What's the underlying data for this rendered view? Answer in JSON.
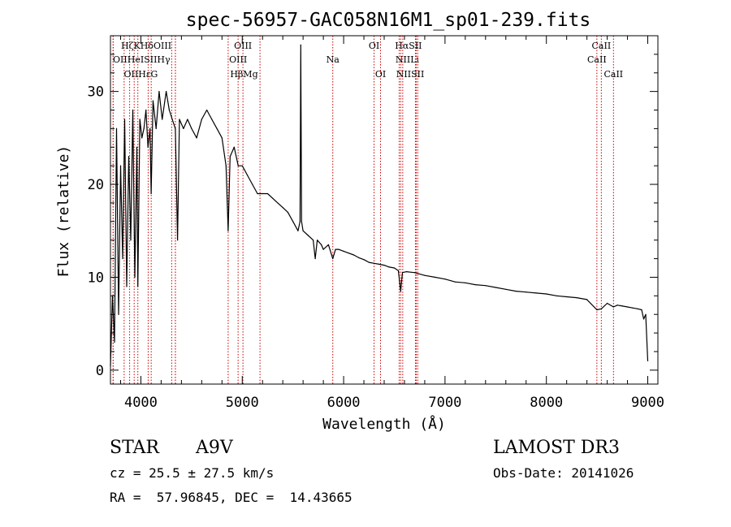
{
  "chart_data": {
    "type": "line",
    "title": "spec-56957-GAC058N16M1_sp01-239.fits",
    "xlabel": "Wavelength (Å)",
    "ylabel": "Flux (relative)",
    "xlim": [
      3700,
      9100
    ],
    "ylim": [
      -1.5,
      36
    ],
    "x_ticks": [
      4000,
      5000,
      6000,
      7000,
      8000,
      9000
    ],
    "y_ticks": [
      0,
      10,
      20,
      30
    ],
    "grid": false,
    "series": [
      {
        "name": "flux",
        "color": "#000000",
        "x": [
          3700,
          3720,
          3740,
          3760,
          3780,
          3800,
          3820,
          3840,
          3860,
          3880,
          3900,
          3920,
          3940,
          3960,
          3970,
          3990,
          4010,
          4030,
          4050,
          4070,
          4090,
          4101,
          4120,
          4150,
          4180,
          4210,
          4250,
          4280,
          4310,
          4340,
          4362,
          4380,
          4420,
          4460,
          4500,
          4550,
          4600,
          4650,
          4700,
          4750,
          4800,
          4840,
          4861,
          4880,
          4920,
          4960,
          5000,
          5050,
          5100,
          5150,
          5200,
          5250,
          5300,
          5350,
          5400,
          5450,
          5500,
          5550,
          5570,
          5577,
          5585,
          5600,
          5650,
          5700,
          5720,
          5740,
          5780,
          5800,
          5850,
          5893,
          5920,
          5950,
          6000,
          6050,
          6100,
          6150,
          6200,
          6250,
          6300,
          6350,
          6400,
          6450,
          6500,
          6540,
          6563,
          6580,
          6620,
          6700,
          6800,
          6900,
          7000,
          7100,
          7200,
          7300,
          7400,
          7500,
          7600,
          7700,
          7800,
          7900,
          8000,
          8100,
          8200,
          8300,
          8400,
          8498,
          8542,
          8600,
          8662,
          8700,
          8750,
          8800,
          8850,
          8900,
          8940,
          8960,
          8980,
          9000
        ],
        "values": [
          0.5,
          8,
          3,
          26,
          6,
          22,
          12,
          27,
          9,
          23,
          14,
          28,
          10,
          24,
          9,
          27,
          25,
          26,
          28,
          24,
          26,
          19,
          29,
          26,
          30,
          27,
          30,
          28,
          27,
          26,
          14,
          27,
          26,
          27,
          26,
          25,
          27,
          28,
          27,
          26,
          25,
          22,
          15,
          23,
          24,
          22,
          22,
          21,
          20,
          19,
          19,
          19,
          18.5,
          18,
          17.5,
          17,
          16,
          15,
          16,
          35,
          16,
          15,
          14.5,
          14,
          12,
          14,
          13.5,
          13,
          13.5,
          12,
          13,
          13,
          12.8,
          12.6,
          12.4,
          12.1,
          11.9,
          11.6,
          11.5,
          11.4,
          11.3,
          11.1,
          11,
          10.7,
          8.5,
          10.5,
          10.6,
          10.5,
          10.2,
          10,
          9.8,
          9.5,
          9.4,
          9.2,
          9.1,
          8.9,
          8.7,
          8.5,
          8.4,
          8.3,
          8.2,
          8,
          7.9,
          7.8,
          7.6,
          6.5,
          6.6,
          7.2,
          6.8,
          7,
          6.9,
          6.8,
          6.7,
          6.6,
          6.5,
          5.5,
          6,
          1
        ]
      }
    ],
    "line_groups": [
      {
        "row": 1,
        "wavelengths": [
          3835,
          3934,
          4102,
          4341
        ],
        "labels": [
          "Hζ",
          "K",
          "Hδ",
          "OIII"
        ]
      },
      {
        "row": 2,
        "wavelengths": [
          3727,
          3889,
          4072,
          4340
        ],
        "labels": [
          "OII",
          "HeI",
          "SII",
          "Hγ"
        ]
      },
      {
        "row": 3,
        "wavelengths": [
          3726,
          3970,
          4304
        ],
        "labels": [
          "OII",
          "Hε",
          "G"
        ]
      },
      {
        "row": 1,
        "wavelengths": [
          5007
        ],
        "labels": [
          "OIII"
        ]
      },
      {
        "row": 2,
        "wavelengths": [
          4959
        ],
        "labels": [
          "OIII"
        ]
      },
      {
        "row": 3,
        "wavelengths": [
          4861,
          5175
        ],
        "labels": [
          "Hβ",
          "Mg"
        ]
      },
      {
        "row": 2,
        "wavelengths": [
          5893
        ],
        "labels": [
          "Na"
        ]
      },
      {
        "row": 1,
        "wavelengths": [
          6300
        ],
        "labels": [
          "OI"
        ]
      },
      {
        "row": 3,
        "wavelengths": [
          6364
        ],
        "labels": [
          "OI"
        ]
      },
      {
        "row": 1,
        "wavelengths": [
          6563,
          6716
        ],
        "labels": [
          "Hα",
          "SII"
        ]
      },
      {
        "row": 2,
        "wavelengths": [
          6548,
          6708
        ],
        "labels": [
          "NII",
          "Li"
        ]
      },
      {
        "row": 3,
        "wavelengths": [
          6583,
          6731
        ],
        "labels": [
          "NII",
          "SII"
        ]
      },
      {
        "row": 1,
        "wavelengths": [
          8542
        ],
        "labels": [
          "CaII"
        ]
      },
      {
        "row": 2,
        "wavelengths": [
          8498
        ],
        "labels": [
          "CaII"
        ]
      },
      {
        "row": 3,
        "wavelengths": [
          8662
        ],
        "labels": [
          "CaII"
        ]
      }
    ],
    "line_color": "#cc0000"
  },
  "info": {
    "object_class": "STAR",
    "subclass": "A9V",
    "survey": "LAMOST DR3",
    "cz": "cz = 25.5 ± 27.5 km/s",
    "obs_date": "Obs-Date: 20141026",
    "coords": "RA =  57.96845, DEC =  14.43665"
  }
}
